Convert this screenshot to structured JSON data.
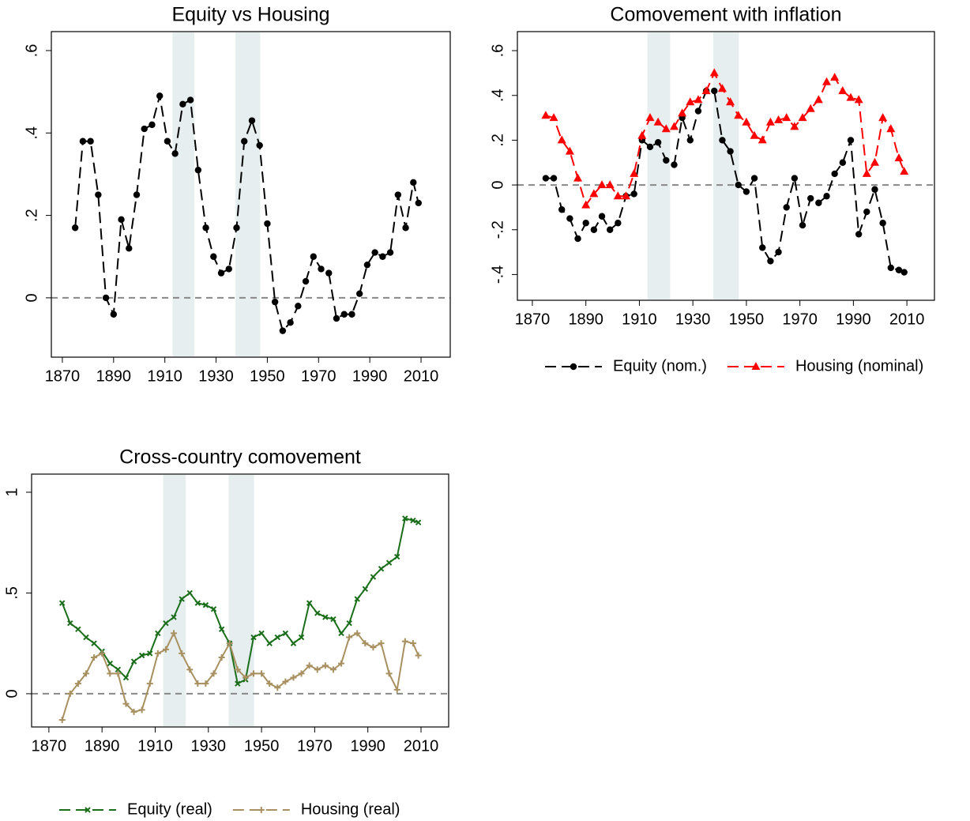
{
  "chart_data": [
    {
      "type": "line",
      "title": "Equity vs Housing",
      "x": [
        1875,
        1878,
        1881,
        1884,
        1887,
        1890,
        1893,
        1896,
        1899,
        1902,
        1905,
        1908,
        1911,
        1914,
        1917,
        1920,
        1923,
        1926,
        1929,
        1932,
        1935,
        1938,
        1941,
        1944,
        1947,
        1950,
        1953,
        1956,
        1959,
        1962,
        1965,
        1968,
        1971,
        1974,
        1977,
        1980,
        1983,
        1986,
        1989,
        1992,
        1995,
        1998,
        2001,
        2004,
        2007,
        2009
      ],
      "series": [
        {
          "color": "#000000",
          "marker": "circle",
          "line_style": "dashed",
          "values": [
            0.17,
            0.38,
            0.38,
            0.25,
            0.0,
            -0.04,
            0.19,
            0.12,
            0.25,
            0.41,
            0.42,
            0.49,
            0.38,
            0.35,
            0.47,
            0.48,
            0.31,
            0.17,
            0.1,
            0.06,
            0.07,
            0.17,
            0.38,
            0.43,
            0.37,
            0.18,
            -0.01,
            -0.08,
            -0.06,
            -0.02,
            0.04,
            0.1,
            0.07,
            0.06,
            -0.05,
            -0.04,
            -0.04,
            0.01,
            0.08,
            0.11,
            0.1,
            0.11,
            0.25,
            0.17,
            0.28,
            0.23
          ]
        }
      ],
      "xlim": [
        1865.7,
        2021.4
      ],
      "ylim": [
        -0.144,
        0.646
      ],
      "xticks": [
        1870,
        1890,
        1910,
        1930,
        1950,
        1970,
        1990,
        2010
      ],
      "yticks": [
        {
          "value": 0,
          "label": "0"
        },
        {
          "value": 0.2,
          "label": ".2"
        },
        {
          "value": 0.4,
          "label": ".4"
        },
        {
          "value": 0.6,
          "label": ".6"
        }
      ],
      "shaded_periods": [
        [
          1913,
          1921.5
        ],
        [
          1937.6,
          1947.2
        ]
      ],
      "reference_line": 0
    },
    {
      "type": "line",
      "title": "Comovement with inflation",
      "x": [
        1875,
        1878,
        1881,
        1884,
        1887,
        1890,
        1893,
        1896,
        1899,
        1902,
        1905,
        1908,
        1911,
        1914,
        1917,
        1920,
        1923,
        1926,
        1929,
        1932,
        1935,
        1938,
        1941,
        1944,
        1947,
        1950,
        1953,
        1956,
        1959,
        1962,
        1965,
        1968,
        1971,
        1974,
        1977,
        1980,
        1983,
        1986,
        1989,
        1992,
        1995,
        1998,
        2001,
        2004,
        2007,
        2009
      ],
      "series": [
        {
          "name": "Equity (nom.)",
          "color": "#000000",
          "marker": "circle",
          "line_style": "dashed",
          "values": [
            0.03,
            0.03,
            -0.11,
            -0.15,
            -0.24,
            -0.17,
            -0.2,
            -0.14,
            -0.2,
            -0.17,
            -0.05,
            -0.04,
            0.2,
            0.17,
            0.19,
            0.11,
            0.09,
            0.3,
            0.2,
            0.33,
            0.42,
            0.42,
            0.2,
            0.15,
            0.0,
            -0.03,
            0.03,
            -0.28,
            -0.34,
            -0.3,
            -0.1,
            0.03,
            -0.18,
            -0.06,
            -0.08,
            -0.05,
            0.05,
            0.1,
            0.2,
            -0.22,
            -0.12,
            -0.02,
            -0.17,
            -0.37,
            -0.38,
            -0.39
          ]
        },
        {
          "name": "Housing (nominal)",
          "color": "#ff0000",
          "marker": "triangle",
          "line_style": "dashed",
          "values": [
            0.31,
            0.3,
            0.2,
            0.15,
            0.03,
            -0.09,
            -0.04,
            0.0,
            0.0,
            -0.05,
            -0.05,
            0.05,
            0.22,
            0.3,
            0.28,
            0.25,
            0.26,
            0.32,
            0.37,
            0.38,
            0.42,
            0.5,
            0.43,
            0.37,
            0.31,
            0.28,
            0.22,
            0.2,
            0.28,
            0.29,
            0.3,
            0.26,
            0.3,
            0.34,
            0.38,
            0.46,
            0.48,
            0.42,
            0.39,
            0.38,
            0.05,
            0.1,
            0.3,
            0.25,
            0.12,
            0.06
          ]
        }
      ],
      "xlim": [
        1864.4,
        2020.3
      ],
      "ylim": [
        -0.515,
        0.685
      ],
      "xticks": [
        1870,
        1890,
        1910,
        1930,
        1950,
        1970,
        1990,
        2010
      ],
      "yticks": [
        {
          "value": -0.4,
          "label": "-.4"
        },
        {
          "value": -0.2,
          "label": "-.2"
        },
        {
          "value": 0,
          "label": "0"
        },
        {
          "value": 0.2,
          "label": ".2"
        },
        {
          "value": 0.4,
          "label": ".4"
        },
        {
          "value": 0.6,
          "label": ".6"
        }
      ],
      "shaded_periods": [
        [
          1913,
          1921.5
        ],
        [
          1937.6,
          1947.2
        ]
      ],
      "reference_line": 0
    },
    {
      "type": "line",
      "title": "Cross-country comovement",
      "x": [
        1875,
        1878,
        1881,
        1884,
        1887,
        1890,
        1893,
        1896,
        1899,
        1902,
        1905,
        1908,
        1911,
        1914,
        1917,
        1920,
        1923,
        1926,
        1929,
        1932,
        1935,
        1938,
        1941,
        1944,
        1947,
        1950,
        1953,
        1956,
        1959,
        1962,
        1965,
        1968,
        1971,
        1974,
        1977,
        1980,
        1983,
        1986,
        1989,
        1992,
        1995,
        1998,
        2001,
        2004,
        2007,
        2009
      ],
      "series": [
        {
          "name": "Equity (real)",
          "color": "#1a6e1a",
          "marker": "x",
          "line_style": "solid",
          "values": [
            0.45,
            0.35,
            0.32,
            0.28,
            0.25,
            0.21,
            0.15,
            0.12,
            0.08,
            0.16,
            0.19,
            0.2,
            0.3,
            0.35,
            0.38,
            0.47,
            0.5,
            0.45,
            0.44,
            0.42,
            0.32,
            0.25,
            0.05,
            0.07,
            0.28,
            0.3,
            0.25,
            0.28,
            0.3,
            0.25,
            0.28,
            0.45,
            0.4,
            0.38,
            0.37,
            0.3,
            0.35,
            0.47,
            0.52,
            0.58,
            0.62,
            0.65,
            0.68,
            0.87,
            0.86,
            0.85
          ]
        },
        {
          "name": "Housing (real)",
          "color": "#a89060",
          "marker": "plus",
          "line_style": "solid",
          "values": [
            -0.13,
            0.0,
            0.05,
            0.1,
            0.18,
            0.2,
            0.1,
            0.1,
            -0.05,
            -0.09,
            -0.08,
            0.05,
            0.2,
            0.22,
            0.3,
            0.2,
            0.12,
            0.05,
            0.05,
            0.1,
            0.18,
            0.25,
            0.12,
            0.08,
            0.1,
            0.1,
            0.05,
            0.03,
            0.06,
            0.08,
            0.1,
            0.14,
            0.12,
            0.14,
            0.12,
            0.15,
            0.28,
            0.3,
            0.25,
            0.23,
            0.25,
            0.1,
            0.02,
            0.26,
            0.25,
            0.19
          ]
        }
      ],
      "xlim": [
        1863.5,
        2020.4
      ],
      "ylim": [
        -0.165,
        1.09
      ],
      "xticks": [
        1870,
        1890,
        1910,
        1930,
        1950,
        1970,
        1990,
        2010
      ],
      "yticks": [
        0,
        {
          "value": 0.5,
          "label": ".5"
        },
        1
      ],
      "shaded_periods": [
        [
          1913,
          1921.5
        ],
        [
          1937.6,
          1947.2
        ]
      ],
      "reference_line": 0
    }
  ]
}
